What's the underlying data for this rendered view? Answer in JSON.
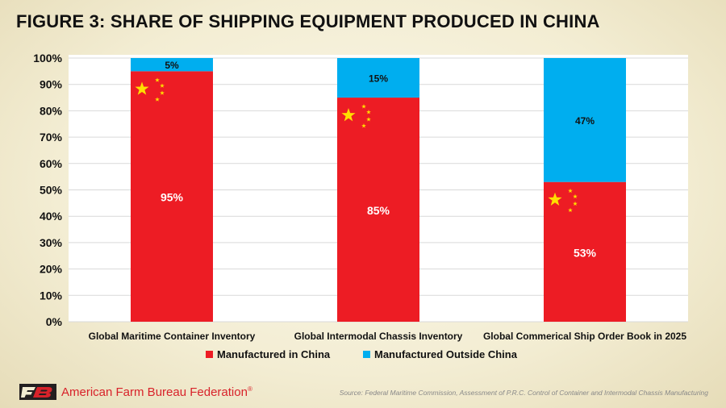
{
  "header": {
    "title": "FIGURE 3: SHARE OF SHIPPING EQUIPMENT PRODUCED IN CHINA"
  },
  "footer": {
    "org_name": "American Farm Bureau Federation",
    "reg_mark": "®",
    "source": "Source: Federal Maritime Commission, Assessment of P.R.C. Control of Container and Intermodal Chassis Manufacturing",
    "logo_text": "FB"
  },
  "colors": {
    "china": "#ed1c24",
    "outside": "#00aeef",
    "star": "#ffde00"
  },
  "chart_data": {
    "type": "bar",
    "stacked": true,
    "categories": [
      "Global Maritime Container Inventory",
      "Global Intermodal Chassis Inventory",
      "Global Commerical Ship Order Book in 2025"
    ],
    "series": [
      {
        "name": "Manufactured in China",
        "values": [
          95,
          85,
          53
        ],
        "labels": [
          "95%",
          "85%",
          "53%"
        ]
      },
      {
        "name": "Manufactured Outside China",
        "values": [
          5,
          15,
          47
        ],
        "labels": [
          "5%",
          "15%",
          "47%"
        ]
      }
    ],
    "yticks": [
      "0%",
      "10%",
      "20%",
      "30%",
      "40%",
      "50%",
      "60%",
      "70%",
      "80%",
      "90%",
      "100%"
    ],
    "ylim": [
      0,
      100
    ],
    "grid": true,
    "legend": "bottom"
  }
}
